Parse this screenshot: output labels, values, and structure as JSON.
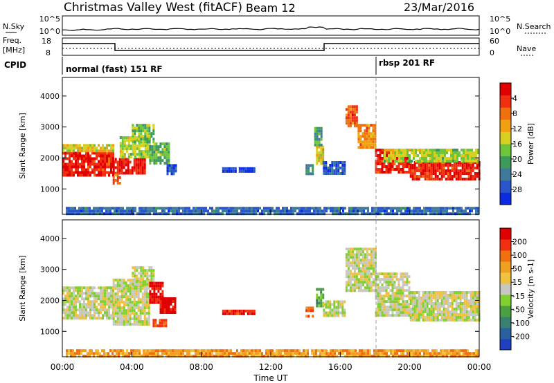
{
  "header": {
    "station": "Christmas Valley West (fitACF)",
    "beam": "Beam 12",
    "date": "23/Mar/2016"
  },
  "noise_panel": {
    "left_label": "N.Sky",
    "right_label": "N.Search",
    "ticks_left": [
      "10^5",
      "10^0"
    ],
    "ticks_right": [
      "10^5",
      "10^0"
    ]
  },
  "freq_panel": {
    "left_label": "Freq.",
    "left_unit": "[MHz]",
    "left_ticks": [
      "18",
      "8"
    ],
    "right_label": "Nave",
    "right_ticks": [
      "60",
      "0"
    ]
  },
  "cpid": {
    "label": "CPID",
    "segments": [
      {
        "start_h": 0,
        "text": "normal (fast) 151 RF"
      },
      {
        "start_h": 18,
        "text": "rbsp 201 RF"
      }
    ]
  },
  "chart_data": [
    {
      "type": "heatmap",
      "name": "power",
      "ylabel": "Slant Range [km]",
      "xlim_hours": [
        0,
        24
      ],
      "ylim_km": [
        180,
        4600
      ],
      "ytick_values": [
        1000,
        2000,
        3000,
        4000
      ],
      "colorbar": {
        "label": "Power [dB]",
        "range": [
          0,
          32
        ],
        "ticks": [
          "4",
          "8",
          "12",
          "16",
          "20",
          "24",
          "28"
        ],
        "colors": [
          "#0a2be0",
          "#2a55c8",
          "#3f7a9a",
          "#3e9a5a",
          "#6ec43a",
          "#d8d020",
          "#f0a010",
          "#f07010",
          "#f03010",
          "#e00000"
        ]
      },
      "regions": [
        {
          "x": [
            0,
            2.9
          ],
          "y": [
            1400,
            2200
          ],
          "level": 0.9
        },
        {
          "x": [
            0,
            2.9
          ],
          "y": [
            2200,
            2450
          ],
          "level": 0.55
        },
        {
          "x": [
            2.9,
            4.8
          ],
          "y": [
            1500,
            2000
          ],
          "level": 0.92
        },
        {
          "x": [
            2.9,
            3.3
          ],
          "y": [
            1200,
            1500
          ],
          "level": 0.8
        },
        {
          "x": [
            3.3,
            5.0
          ],
          "y": [
            2000,
            2700
          ],
          "level": 0.5
        },
        {
          "x": [
            4.0,
            5.2
          ],
          "y": [
            2500,
            3100
          ],
          "level": 0.45
        },
        {
          "x": [
            5.0,
            6.1
          ],
          "y": [
            1800,
            2500
          ],
          "level": 0.4
        },
        {
          "x": [
            6.0,
            6.5
          ],
          "y": [
            1500,
            1800
          ],
          "level": 0.15
        },
        {
          "x": [
            9.2,
            11.0
          ],
          "y": [
            1550,
            1700
          ],
          "level": 0.1
        },
        {
          "x": [
            14.0,
            14.4
          ],
          "y": [
            1500,
            1800
          ],
          "level": 0.3
        },
        {
          "x": [
            14.6,
            15.0
          ],
          "y": [
            1800,
            2400
          ],
          "level": 0.6
        },
        {
          "x": [
            14.5,
            14.9
          ],
          "y": [
            2400,
            3000
          ],
          "level": 0.35
        },
        {
          "x": [
            15.0,
            16.2
          ],
          "y": [
            1500,
            1900
          ],
          "level": 0.15
        },
        {
          "x": [
            16.3,
            17.0
          ],
          "y": [
            3000,
            3700
          ],
          "level": 0.8
        },
        {
          "x": [
            17.0,
            18.0
          ],
          "y": [
            2300,
            3100
          ],
          "level": 0.7
        },
        {
          "x": [
            18.0,
            20.0
          ],
          "y": [
            1500,
            2300
          ],
          "level": 0.9
        },
        {
          "x": [
            20.0,
            24.0
          ],
          "y": [
            1350,
            1900
          ],
          "level": 0.88
        },
        {
          "x": [
            18.5,
            24.0
          ],
          "y": [
            1900,
            2300
          ],
          "level": 0.5
        },
        {
          "x": [
            0.2,
            24.0
          ],
          "y": [
            200,
            420
          ],
          "level": 0.2
        }
      ]
    },
    {
      "type": "heatmap",
      "name": "velocity",
      "ylabel": "Slant Range [km]",
      "xlim_hours": [
        0,
        24
      ],
      "ylim_km": [
        180,
        4600
      ],
      "ytick_values": [
        1000,
        2000,
        3000,
        4000
      ],
      "colorbar": {
        "label": "Velocity [m s-1]",
        "range": [
          -240,
          240
        ],
        "ticks": [
          "200",
          "100",
          "50",
          "15",
          "-15",
          "-50",
          "-100",
          "-200"
        ],
        "colors": [
          "#2040c0",
          "#2a60a0",
          "#3a8070",
          "#4aa040",
          "#80d030",
          "#c8c8c0",
          "#f0c040",
          "#f0a020",
          "#f07010",
          "#f03010",
          "#e00000"
        ]
      },
      "regions": [
        {
          "x": [
            0,
            2.9
          ],
          "y": [
            1400,
            2450
          ],
          "level": 0.5
        },
        {
          "x": [
            2.9,
            5.0
          ],
          "y": [
            1200,
            2700
          ],
          "level": 0.5
        },
        {
          "x": [
            4.0,
            5.2
          ],
          "y": [
            2500,
            3100
          ],
          "level": 0.5
        },
        {
          "x": [
            5.0,
            5.8
          ],
          "y": [
            1900,
            2600
          ],
          "level": 0.95
        },
        {
          "x": [
            5.6,
            6.5
          ],
          "y": [
            1600,
            2100
          ],
          "level": 0.97
        },
        {
          "x": [
            5.2,
            6.0
          ],
          "y": [
            1200,
            1400
          ],
          "level": 0.82
        },
        {
          "x": [
            9.2,
            11.0
          ],
          "y": [
            1550,
            1700
          ],
          "level": 0.9
        },
        {
          "x": [
            14.0,
            14.4
          ],
          "y": [
            1500,
            1800
          ],
          "level": 0.75
        },
        {
          "x": [
            14.6,
            15.0
          ],
          "y": [
            1800,
            2400
          ],
          "level": 0.35
        },
        {
          "x": [
            15.0,
            16.2
          ],
          "y": [
            1500,
            2000
          ],
          "level": 0.5
        },
        {
          "x": [
            16.3,
            18.0
          ],
          "y": [
            2300,
            3700
          ],
          "level": 0.5
        },
        {
          "x": [
            18.0,
            20.0
          ],
          "y": [
            1500,
            2900
          ],
          "level": 0.5
        },
        {
          "x": [
            20.0,
            24.0
          ],
          "y": [
            1350,
            2300
          ],
          "level": 0.5
        },
        {
          "x": [
            0.2,
            24.0
          ],
          "y": [
            200,
            420
          ],
          "level": 0.7
        }
      ]
    }
  ],
  "xaxis": {
    "label": "Time UT",
    "ticks": [
      "00:00",
      "04:00",
      "08:00",
      "12:00",
      "16:00",
      "20:00",
      "00:00"
    ]
  }
}
